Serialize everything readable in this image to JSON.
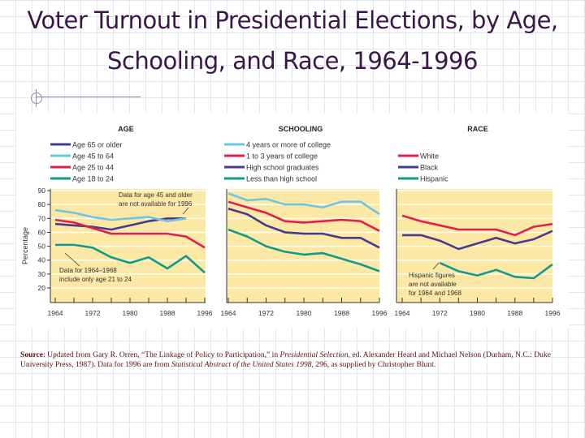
{
  "slide": {
    "title_line1": "Voter Turnout in Presidential Elections, by Age,",
    "title_line2": "Schooling, and Race, 1964-1996",
    "source_label": "Source",
    "source_text_1": ": Updated from Gary R. Orren, “The Linkage of Policy to Participation,” in ",
    "source_italic_1": "Presidential Selection",
    "source_text_2": ", ed. Alexander Heard and Michael Nelson (Durham, N.C.: Duke University Press, 1987). Data for 1996 are from ",
    "source_italic_2": "Statistical Abstract of the United States 1998",
    "source_text_3": ", 296, as supplied by Christopher Blunt."
  },
  "colors": {
    "purple": "#4a3a8c",
    "lightblue": "#6fc4df",
    "red": "#e01f4c",
    "teal": "#14998a",
    "plot_bg": "#fbe8a4"
  },
  "chart_data": [
    {
      "type": "line",
      "title": "AGE",
      "ylabel": "Percentage",
      "ylim": [
        20,
        90
      ],
      "yticks": [
        90,
        80,
        70,
        60,
        50,
        40,
        30,
        20
      ],
      "x": [
        1964,
        1968,
        1972,
        1976,
        1980,
        1984,
        1988,
        1992,
        1996
      ],
      "xticks": [
        "1964",
        "1972",
        "1980",
        "1988",
        "1996"
      ],
      "grid": true,
      "legend": "top",
      "series": [
        {
          "name": "Age 65 or older",
          "color": "purple",
          "values": [
            66,
            65,
            64,
            62,
            65,
            68,
            70,
            70,
            null
          ]
        },
        {
          "name": "Age 45 to 64",
          "color": "lightblue",
          "values": [
            76,
            74,
            71,
            69,
            70,
            71,
            68,
            70,
            null
          ]
        },
        {
          "name": "Age 25 to 44",
          "color": "red",
          "values": [
            69,
            67,
            63,
            59,
            59,
            59,
            59,
            57,
            49
          ]
        },
        {
          "name": "Age 18 to 24",
          "color": "teal",
          "values": [
            51,
            51,
            49,
            42,
            38,
            42,
            34,
            43,
            31
          ]
        }
      ],
      "annotations": [
        {
          "lines": [
            "Data for age 45 and older",
            "are not available for 1996"
          ]
        },
        {
          "lines": [
            "Data for 1964–1968",
            "include only age 21 to 24"
          ]
        }
      ]
    },
    {
      "type": "line",
      "title": "SCHOOLING",
      "ylim": [
        20,
        90
      ],
      "x": [
        1964,
        1968,
        1972,
        1976,
        1980,
        1984,
        1988,
        1992,
        1996
      ],
      "xticks": [
        "1964",
        "1972",
        "1980",
        "1988",
        "1996"
      ],
      "grid": true,
      "legend": "top",
      "series": [
        {
          "name": "4 years or more of college",
          "color": "lightblue",
          "values": [
            88,
            83,
            84,
            80,
            80,
            78,
            82,
            82,
            73
          ]
        },
        {
          "name": "1 to 3 years of college",
          "color": "red",
          "values": [
            82,
            78,
            74,
            68,
            67,
            68,
            69,
            68,
            61
          ]
        },
        {
          "name": "High school graduates",
          "color": "purple",
          "values": [
            77,
            73,
            65,
            60,
            59,
            59,
            56,
            56,
            49
          ]
        },
        {
          "name": "Less than high school",
          "color": "teal",
          "values": [
            62,
            57,
            50,
            46,
            44,
            45,
            41,
            37,
            32
          ]
        }
      ],
      "annotations": []
    },
    {
      "type": "line",
      "title": "RACE",
      "ylim": [
        20,
        90
      ],
      "x": [
        1964,
        1968,
        1972,
        1976,
        1980,
        1984,
        1988,
        1992,
        1996
      ],
      "xticks": [
        "1964",
        "1972",
        "1980",
        "1988",
        "1996"
      ],
      "grid": true,
      "legend": "top",
      "series": [
        {
          "name": "White",
          "color": "red",
          "values": [
            72,
            68,
            65,
            62,
            62,
            62,
            58,
            64,
            66
          ]
        },
        {
          "name": "Black",
          "color": "purple",
          "values": [
            58,
            58,
            54,
            48,
            52,
            56,
            52,
            55,
            61
          ]
        },
        {
          "name": "Hispanic",
          "color": "teal",
          "values": [
            null,
            null,
            38,
            32,
            29,
            33,
            28,
            27,
            37
          ]
        }
      ],
      "annotations": [
        {
          "lines": [
            "Hispanic figures",
            "are not available",
            "for 1964 and 1968"
          ]
        }
      ]
    }
  ]
}
